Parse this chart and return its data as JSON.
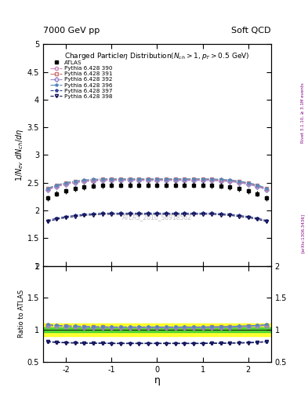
{
  "title_left": "7000 GeV pp",
  "title_right": "Soft QCD",
  "plot_title": "Charged Particleη Distribution(N_{ch} > 1, p_{T} > 0.5 GeV)",
  "ylabel_main": "1/N_{ev} dN_{ch}/dη",
  "ylabel_ratio": "Ratio to ATLAS",
  "xlabel": "η",
  "right_label_top": "Rivet 3.1.10, ≥ 3.1M events",
  "right_label_bottom": "[arXiv:1306.3436]",
  "watermark": "ATLAS_2010_S8918562",
  "xlim": [
    -2.5,
    2.5
  ],
  "ylim_main": [
    1.0,
    5.0
  ],
  "ylim_ratio": [
    0.5,
    2.0
  ],
  "yticks_main": [
    1.0,
    1.5,
    2.0,
    2.5,
    3.0,
    3.5,
    4.0,
    4.5,
    5.0
  ],
  "yticks_ratio": [
    0.5,
    1.0,
    1.5,
    2.0
  ],
  "xticks": [
    -2,
    -1,
    0,
    1,
    2
  ],
  "eta": [
    -2.4,
    -2.2,
    -2.0,
    -1.8,
    -1.6,
    -1.4,
    -1.2,
    -1.0,
    -0.8,
    -0.6,
    -0.4,
    -0.2,
    0.0,
    0.2,
    0.4,
    0.6,
    0.8,
    1.0,
    1.2,
    1.4,
    1.6,
    1.8,
    2.0,
    2.2,
    2.4
  ],
  "atlas_data": [
    2.22,
    2.3,
    2.35,
    2.39,
    2.42,
    2.44,
    2.45,
    2.46,
    2.46,
    2.46,
    2.46,
    2.46,
    2.46,
    2.46,
    2.46,
    2.46,
    2.46,
    2.46,
    2.45,
    2.44,
    2.42,
    2.39,
    2.35,
    2.3,
    2.22
  ],
  "atlas_err": [
    0.05,
    0.05,
    0.05,
    0.05,
    0.05,
    0.05,
    0.05,
    0.05,
    0.05,
    0.05,
    0.05,
    0.05,
    0.05,
    0.05,
    0.05,
    0.05,
    0.05,
    0.05,
    0.05,
    0.05,
    0.05,
    0.05,
    0.05,
    0.05,
    0.05
  ],
  "series": [
    {
      "label": "Pythia 6.428 390",
      "color": "#cc88bb",
      "marker": "o",
      "linestyle": "-.",
      "values": [
        2.38,
        2.44,
        2.48,
        2.51,
        2.53,
        2.54,
        2.55,
        2.55,
        2.55,
        2.55,
        2.55,
        2.55,
        2.55,
        2.55,
        2.55,
        2.55,
        2.55,
        2.55,
        2.55,
        2.54,
        2.53,
        2.51,
        2.48,
        2.44,
        2.38
      ]
    },
    {
      "label": "Pythia 6.428 391",
      "color": "#cc7777",
      "marker": "s",
      "linestyle": "-.",
      "values": [
        2.39,
        2.45,
        2.49,
        2.52,
        2.54,
        2.55,
        2.56,
        2.56,
        2.56,
        2.56,
        2.56,
        2.56,
        2.56,
        2.56,
        2.56,
        2.56,
        2.56,
        2.56,
        2.56,
        2.55,
        2.54,
        2.52,
        2.49,
        2.45,
        2.39
      ]
    },
    {
      "label": "Pythia 6.428 392",
      "color": "#9988cc",
      "marker": "D",
      "linestyle": "-.",
      "values": [
        2.37,
        2.43,
        2.47,
        2.5,
        2.52,
        2.53,
        2.54,
        2.54,
        2.54,
        2.54,
        2.54,
        2.54,
        2.54,
        2.54,
        2.54,
        2.54,
        2.54,
        2.54,
        2.54,
        2.53,
        2.52,
        2.5,
        2.47,
        2.43,
        2.37
      ]
    },
    {
      "label": "Pythia 6.428 396",
      "color": "#5588bb",
      "marker": "*",
      "linestyle": "-.",
      "values": [
        2.4,
        2.46,
        2.5,
        2.53,
        2.55,
        2.56,
        2.57,
        2.57,
        2.57,
        2.57,
        2.57,
        2.57,
        2.57,
        2.57,
        2.57,
        2.57,
        2.57,
        2.57,
        2.57,
        2.56,
        2.55,
        2.53,
        2.5,
        2.46,
        2.4
      ]
    },
    {
      "label": "Pythia 6.428 397",
      "color": "#334499",
      "marker": "*",
      "linestyle": "--",
      "values": [
        1.82,
        1.86,
        1.89,
        1.91,
        1.93,
        1.94,
        1.95,
        1.95,
        1.95,
        1.95,
        1.95,
        1.95,
        1.95,
        1.95,
        1.95,
        1.95,
        1.95,
        1.95,
        1.95,
        1.94,
        1.93,
        1.91,
        1.89,
        1.86,
        1.82
      ]
    },
    {
      "label": "Pythia 6.428 398",
      "color": "#111155",
      "marker": "v",
      "linestyle": "--",
      "values": [
        1.8,
        1.84,
        1.87,
        1.89,
        1.91,
        1.92,
        1.93,
        1.93,
        1.93,
        1.93,
        1.93,
        1.93,
        1.93,
        1.93,
        1.93,
        1.93,
        1.93,
        1.93,
        1.93,
        1.92,
        1.91,
        1.89,
        1.87,
        1.84,
        1.8
      ]
    }
  ],
  "ratio_band_yellow": 0.1,
  "ratio_band_green": 0.04,
  "background_color": "#ffffff"
}
